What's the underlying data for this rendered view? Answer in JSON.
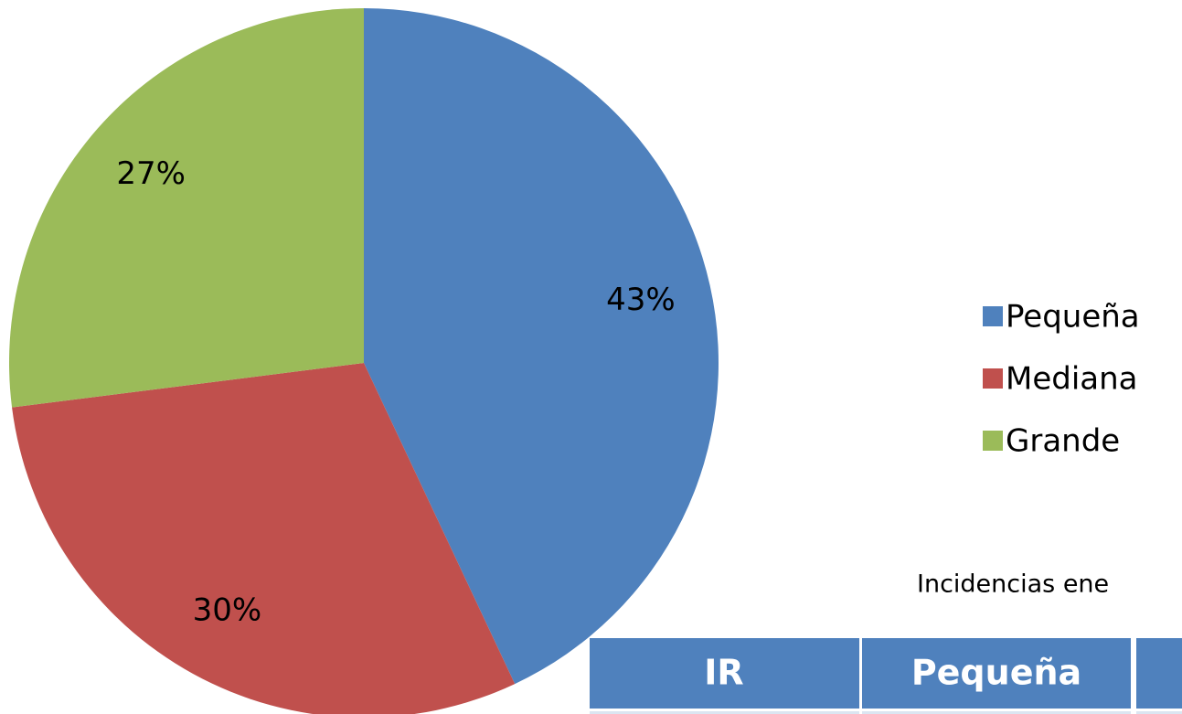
{
  "chart_data": {
    "type": "pie",
    "categories": [
      "Pequeña",
      "Mediana",
      "Grande"
    ],
    "values": [
      43,
      30,
      27
    ],
    "value_labels": [
      "43%",
      "30%",
      "27%"
    ],
    "colors": [
      "#4f81bd",
      "#c0504d",
      "#9bbb59"
    ],
    "legend": "right"
  },
  "caption": "Incidencias ene",
  "table": {
    "header": [
      "IR",
      "Pequeña"
    ]
  }
}
